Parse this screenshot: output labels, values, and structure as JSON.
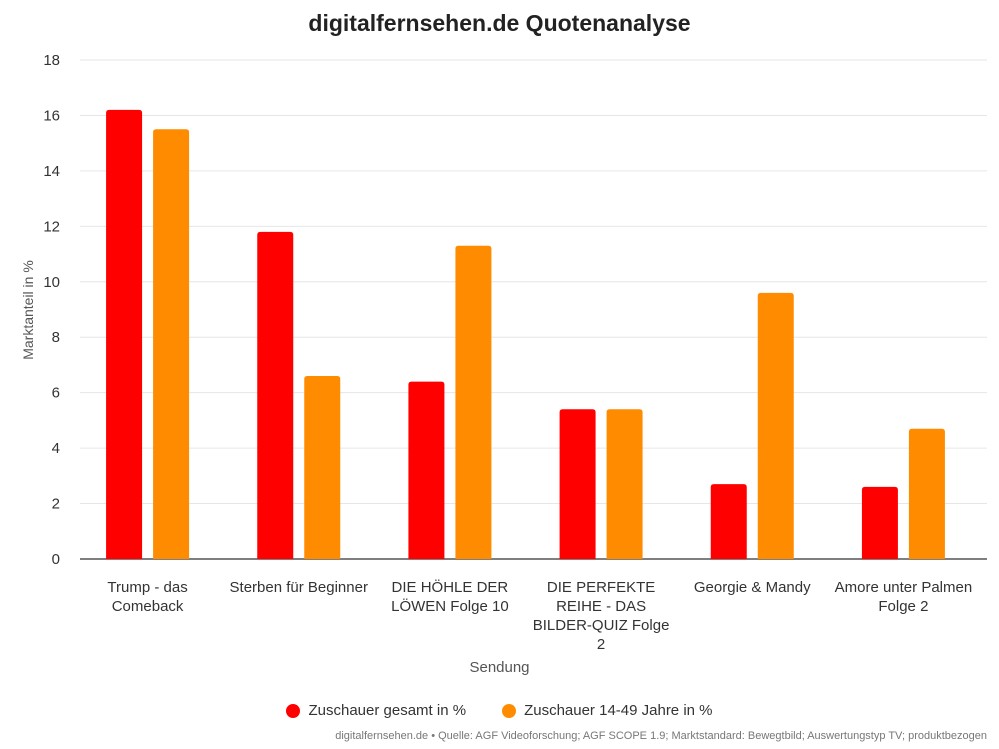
{
  "chart_data": {
    "type": "bar",
    "title": "digitalfernsehen.de Quotenanalyse",
    "xlabel": "Sendung",
    "ylabel": "Marktanteil in %",
    "ylim": [
      0,
      18
    ],
    "yticks": [
      0,
      2,
      4,
      6,
      8,
      10,
      12,
      14,
      16,
      18
    ],
    "grid": true,
    "legend_position": "bottom",
    "categories": [
      "Trump - das Comeback",
      "Sterben für Beginner",
      "DIE HÖHLE DER LÖWEN Folge 10",
      "DIE PERFEKTE REIHE - DAS BILDER-QUIZ Folge 2",
      "Georgie & Mandy",
      "Amore unter Palmen Folge 2"
    ],
    "series": [
      {
        "name": "Zuschauer gesamt in %",
        "color": "#ff0000",
        "values": [
          16.2,
          11.8,
          6.4,
          5.4,
          2.7,
          2.6
        ]
      },
      {
        "name": "Zuschauer 14-49 Jahre in %",
        "color": "#ff8c00",
        "values": [
          15.5,
          6.6,
          11.3,
          5.4,
          9.6,
          4.7
        ]
      }
    ],
    "source": "digitalfernsehen.de • Quelle: AGF Videoforschung; AGF SCOPE 1.9; Marktstandard: Bewegtbild; Auswertungstyp TV; produktbezogen"
  }
}
